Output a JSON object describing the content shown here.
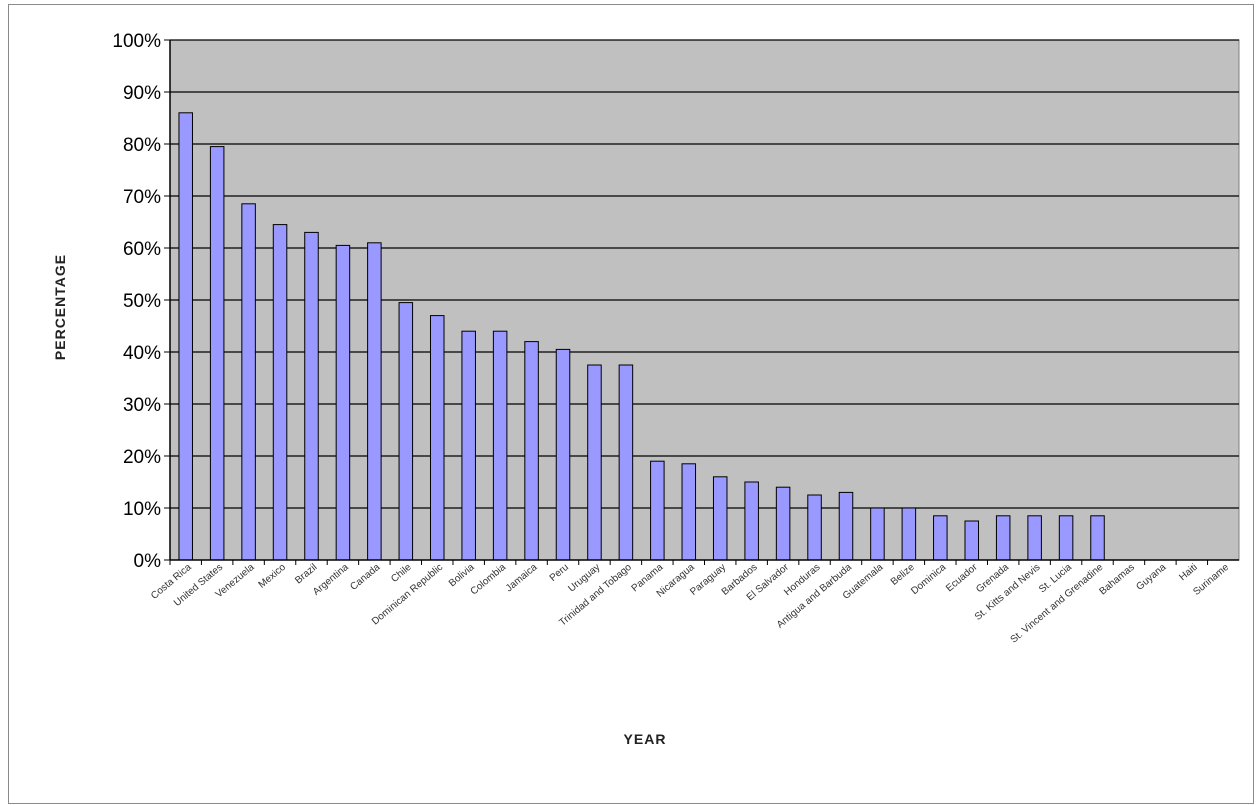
{
  "chart_data": {
    "type": "bar",
    "title": "",
    "xlabel": "YEAR",
    "ylabel": "PERCENTAGE",
    "ylim": [
      0,
      100
    ],
    "y_ticks": [
      "0%",
      "10%",
      "20%",
      "30%",
      "40%",
      "50%",
      "60%",
      "70%",
      "80%",
      "90%",
      "100%"
    ],
    "grid": true,
    "legend": "none",
    "categories": [
      "Costa Rica",
      "United States",
      "Venezuela",
      "Mexico",
      "Brazil",
      "Argentina",
      "Canada",
      "Chile",
      "Dominican Republic",
      "Bolivia",
      "Colombia",
      "Jamaica",
      "Peru",
      "Uruguay",
      "Trinidad and Tobago",
      "Panama",
      "Nicaragua",
      "Paraguay",
      "Barbados",
      "El Salvador",
      "Honduras",
      "Antigua and Barbuda",
      "Guatemala",
      "Belize",
      "Dominica",
      "Ecuador",
      "Grenada",
      "St. Kitts and Nevis",
      "St. Lucia",
      "St. Vincent and Grenadine",
      "Bahamas",
      "Guyana",
      "Haiti",
      "Suriname"
    ],
    "values": [
      86,
      79.5,
      68.5,
      64.5,
      63,
      60.5,
      61,
      49.5,
      47,
      44,
      44,
      42,
      40.5,
      37.5,
      37.5,
      19,
      18.5,
      16,
      15,
      14,
      12.5,
      13,
      10,
      10,
      8.5,
      7.5,
      8.5,
      8.5,
      8.5,
      8.5,
      0,
      0,
      0,
      0
    ],
    "colors": {
      "bar_fill": "#9999ff",
      "bar_stroke": "#000000",
      "plot_background": "#c0c0c0",
      "gridline": "#000000"
    }
  }
}
